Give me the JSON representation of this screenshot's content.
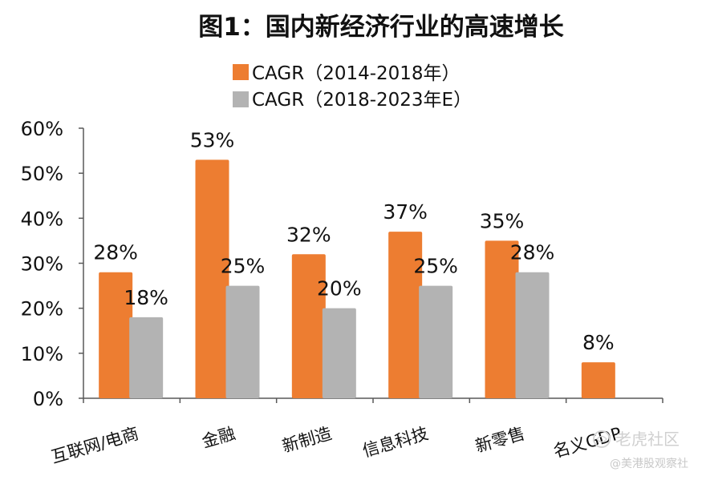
{
  "chart_data": {
    "type": "bar",
    "title": "图1：国内新经济行业的高速增长",
    "categories": [
      "互联网/电商",
      "金融",
      "新制造",
      "信息科技",
      "新零售",
      "名义GDP"
    ],
    "series": [
      {
        "name": "CAGR（2014-2018年）",
        "values": [
          28,
          53,
          32,
          37,
          35,
          8
        ],
        "value_labels": [
          "28%",
          "53%",
          "32%",
          "37%",
          "35%",
          "8%"
        ],
        "color": "#ED7D31"
      },
      {
        "name": "CAGR（2018-2023年E）",
        "values": [
          18,
          25,
          20,
          25,
          28,
          null
        ],
        "value_labels": [
          "18%",
          "25%",
          "20%",
          "25%",
          "28%",
          ""
        ],
        "color": "#B3B3B3"
      }
    ],
    "y_ticks": [
      "0%",
      "10%",
      "20%",
      "30%",
      "40%",
      "50%",
      "60%"
    ],
    "ylim": [
      0,
      60
    ],
    "grid": false,
    "legend_position": "top-center"
  },
  "watermark": {
    "brand": "老虎社区",
    "source": "@美港股观察社"
  }
}
